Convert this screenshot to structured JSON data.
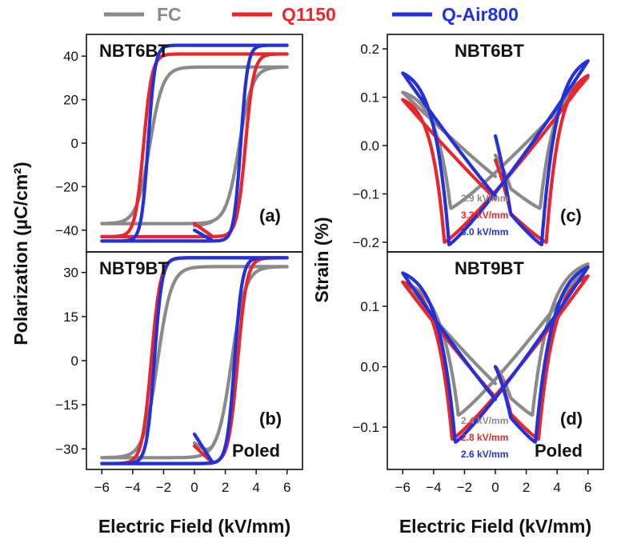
{
  "colors": {
    "FC": "#8a8a8a",
    "Q1150": "#e8262b",
    "Q-Air800": "#2431d6",
    "axis": "#111111"
  },
  "legend": [
    {
      "name": "FC",
      "color": "#8a8a8a"
    },
    {
      "name": "Q1150",
      "color": "#e8262b"
    },
    {
      "name": "Q-Air800",
      "color": "#2431d6"
    }
  ],
  "left_ylabel": "Polarization (µC/cm²)",
  "right_ylabel": "Strain (%)",
  "left_xlabel": "Electric Field (kV/mm)",
  "right_xlabel": "Electric Field (kV/mm)",
  "chart_data": [
    {
      "id": "a",
      "panel_label": "(a)",
      "type": "line",
      "title": "NBT6BT",
      "subtitle": "",
      "xlabel": "Electric Field (kV/mm)",
      "ylabel": "Polarization (µC/cm²)",
      "xlim": [
        -7,
        7
      ],
      "ylim": [
        -50,
        50
      ],
      "yticks": [
        40,
        20,
        0,
        -20,
        -40
      ],
      "show_xticks": false,
      "series": [
        {
          "name": "FC",
          "kind": "pe",
          "Pr": 25,
          "Ec": 2.9,
          "Pmax": 35,
          "Pmin": -37,
          "Pstart": -38,
          "Ps": 0,
          "Emax": 6,
          "slope": 0,
          "w": 0.85
        },
        {
          "name": "Q1150",
          "kind": "pe",
          "Pr": 34,
          "Ec": 3.3,
          "Pmax": 41,
          "Pmin": -43,
          "Pstart": -37,
          "Ps": 0,
          "Emax": 6,
          "slope": 0,
          "w": 0.55
        },
        {
          "name": "Q-Air800",
          "kind": "pe",
          "Pr": 37,
          "Ec": 3.0,
          "Pmax": 45,
          "Pmin": -45,
          "Pstart": -40,
          "Ps": 0,
          "Emax": 6,
          "slope": 0,
          "w": 0.45
        }
      ]
    },
    {
      "id": "b",
      "panel_label": "(b)",
      "type": "line",
      "title": "NBT9BT",
      "subtitle": "Poled",
      "xlabel": "Electric Field (kV/mm)",
      "ylabel": "Polarization (µC/cm²)",
      "xlim": [
        -7,
        7
      ],
      "ylim": [
        -37,
        37
      ],
      "yticks": [
        30,
        15,
        0,
        -15,
        -30
      ],
      "xticks": [
        -6,
        -4,
        -2,
        0,
        2,
        4,
        6
      ],
      "show_xticks": true,
      "series": [
        {
          "name": "FC",
          "kind": "pe",
          "Pr": 20,
          "Ec": 2.4,
          "Pmax": 32,
          "Pmin": -33,
          "Pstart": -28,
          "Ps": 0,
          "Emax": 6,
          "slope": 0,
          "w": 0.9
        },
        {
          "name": "Q1150",
          "kind": "pe",
          "Pr": 26,
          "Ec": 2.8,
          "Pmax": 35,
          "Pmin": -35,
          "Pstart": -29,
          "Ps": 0,
          "Emax": 6,
          "slope": 0,
          "w": 0.6
        },
        {
          "name": "Q-Air800",
          "kind": "pe",
          "Pr": 27,
          "Ec": 2.6,
          "Pmax": 35,
          "Pmin": -35,
          "Pstart": -25,
          "Ps": 0,
          "Emax": 6,
          "slope": 0,
          "w": 0.5
        }
      ]
    },
    {
      "id": "c",
      "panel_label": "(c)",
      "type": "line",
      "title": "NBT6BT",
      "subtitle": "",
      "xlabel": "Electric Field (kV/mm)",
      "ylabel": "Strain (%)",
      "xlim": [
        -7,
        7
      ],
      "ylim": [
        -0.22,
        0.23
      ],
      "yticks": [
        0.2,
        0.1,
        0.0,
        -0.1,
        -0.2
      ],
      "show_xticks": false,
      "coercive_field_labels": [
        "2.9 kV/mm",
        "3.3 kV/mm",
        "3.0 kV/mm"
      ],
      "series": [
        {
          "name": "FC",
          "kind": "se",
          "Ec": 2.9,
          "Smin": -0.13,
          "Smax": 0.14,
          "Sneg": 0.11,
          "Emax": 6,
          "w": 0.8,
          "end": -0.02
        },
        {
          "name": "Q1150",
          "kind": "se",
          "Ec": 3.3,
          "Smin": -0.2,
          "Smax": 0.145,
          "Sneg": 0.095,
          "Emax": 6,
          "w": 0.5,
          "end": -0.03
        },
        {
          "name": "Q-Air800",
          "kind": "se",
          "Ec": 3.0,
          "Smin": -0.205,
          "Smax": 0.175,
          "Sneg": 0.15,
          "Emax": 6,
          "w": 0.45,
          "end": 0.02
        }
      ]
    },
    {
      "id": "d",
      "panel_label": "(d)",
      "type": "line",
      "title": "NBT9BT",
      "subtitle": "Poled",
      "xlabel": "Electric Field (kV/mm)",
      "ylabel": "Strain (%)",
      "xlim": [
        -7,
        7
      ],
      "ylim": [
        -0.17,
        0.19
      ],
      "yticks": [
        0.1,
        0.0,
        -0.1
      ],
      "xticks": [
        -6,
        -4,
        -2,
        0,
        2,
        4,
        6
      ],
      "show_xticks": true,
      "coercive_field_labels": [
        "2.4 kV/mm",
        "2.8 kV/mm",
        "2.6 kV/mm"
      ],
      "series": [
        {
          "name": "FC",
          "kind": "se",
          "Ec": 2.4,
          "Smin": -0.08,
          "Smax": 0.17,
          "Sneg": 0.14,
          "Emax": 6,
          "w": 0.8,
          "end": 0.0
        },
        {
          "name": "Q1150",
          "kind": "se",
          "Ec": 2.8,
          "Smin": -0.12,
          "Smax": 0.15,
          "Sneg": 0.14,
          "Emax": 6,
          "w": 0.5,
          "end": 0.0
        },
        {
          "name": "Q-Air800",
          "kind": "se",
          "Ec": 2.6,
          "Smin": -0.125,
          "Smax": 0.165,
          "Sneg": 0.155,
          "Emax": 6,
          "w": 0.5,
          "end": 0.0
        }
      ]
    }
  ]
}
